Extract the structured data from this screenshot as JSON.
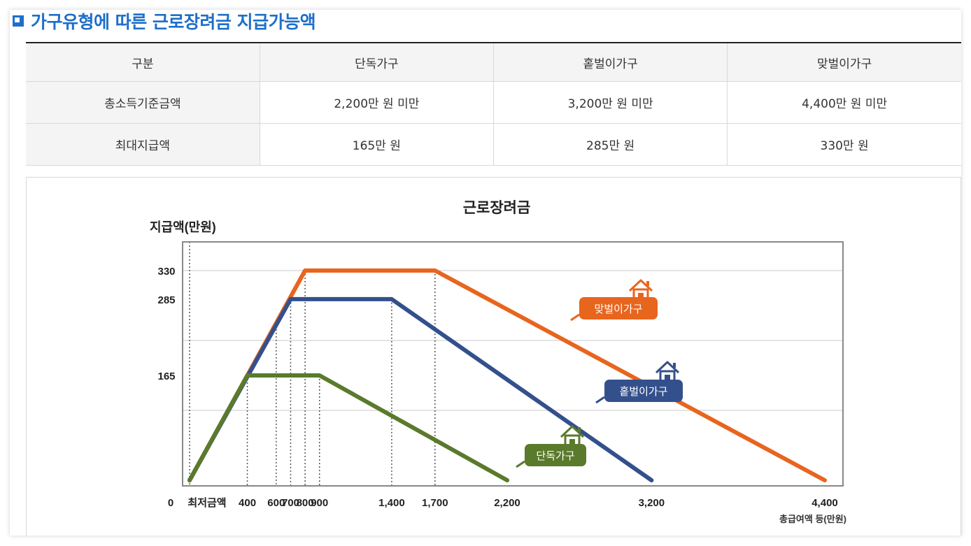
{
  "page": {
    "title": "가구유형에 따른 근로장려금 지급가능액"
  },
  "table": {
    "headers": [
      "구분",
      "단독가구",
      "홑벌이가구",
      "맞벌이가구"
    ],
    "rows": [
      [
        "총소득기준금액",
        "2,200만 원 미만",
        "3,200만 원 미만",
        "4,400만 원 미만"
      ],
      [
        "최대지급액",
        "165만 원",
        "285만 원",
        "330만 원"
      ]
    ]
  },
  "chart_data": {
    "type": "line",
    "title": "근로장려금",
    "ylabel": "지급액(만원)",
    "xlabel": "총급여액 등(만원)",
    "x_zero_label": "0",
    "x_min_label": "최저금액",
    "xlim": [
      0,
      4400
    ],
    "ylim": [
      0,
      330
    ],
    "x_ticks": [
      {
        "value": 400,
        "label": "400"
      },
      {
        "value": 600,
        "label": "600"
      },
      {
        "value": 700,
        "label": "700"
      },
      {
        "value": 800,
        "label": "800"
      },
      {
        "value": 900,
        "label": "900"
      },
      {
        "value": 1400,
        "label": "1,400"
      },
      {
        "value": 1700,
        "label": "1,700"
      },
      {
        "value": 2200,
        "label": "2,200"
      },
      {
        "value": 3200,
        "label": "3,200"
      },
      {
        "value": 4400,
        "label": "4,400"
      }
    ],
    "y_ticks": [
      {
        "value": 165,
        "label": "165"
      },
      {
        "value": 285,
        "label": "285"
      },
      {
        "value": 330,
        "label": "330"
      }
    ],
    "grid": true,
    "series": [
      {
        "name": "맞벌이가구",
        "color": "#e8651e",
        "x": [
          0,
          800,
          1700,
          4400
        ],
        "y": [
          0,
          330,
          330,
          0
        ]
      },
      {
        "name": "홑벌이가구",
        "color": "#34508c",
        "x": [
          0,
          700,
          1400,
          3200
        ],
        "y": [
          0,
          285,
          285,
          0
        ]
      },
      {
        "name": "단독가구",
        "color": "#5a7a2c",
        "x": [
          0,
          400,
          900,
          2200
        ],
        "y": [
          0,
          165,
          165,
          0
        ]
      }
    ],
    "legend": "inline-labels"
  }
}
